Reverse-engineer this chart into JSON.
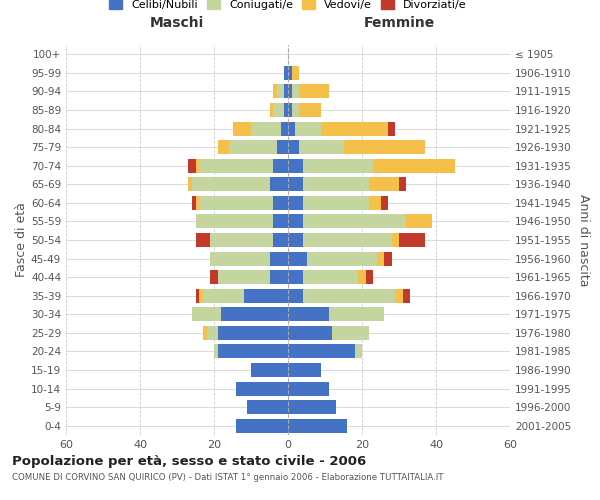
{
  "age_groups": [
    "0-4",
    "5-9",
    "10-14",
    "15-19",
    "20-24",
    "25-29",
    "30-34",
    "35-39",
    "40-44",
    "45-49",
    "50-54",
    "55-59",
    "60-64",
    "65-69",
    "70-74",
    "75-79",
    "80-84",
    "85-89",
    "90-94",
    "95-99",
    "100+"
  ],
  "birth_years": [
    "2001-2005",
    "1996-2000",
    "1991-1995",
    "1986-1990",
    "1981-1985",
    "1976-1980",
    "1971-1975",
    "1966-1970",
    "1961-1965",
    "1956-1960",
    "1951-1955",
    "1946-1950",
    "1941-1945",
    "1936-1940",
    "1931-1935",
    "1926-1930",
    "1921-1925",
    "1916-1920",
    "1911-1915",
    "1906-1910",
    "≤ 1905"
  ],
  "maschi": {
    "celibi": [
      14,
      11,
      14,
      10,
      19,
      19,
      18,
      12,
      5,
      5,
      4,
      4,
      4,
      5,
      4,
      3,
      2,
      1,
      1,
      1,
      0
    ],
    "coniugati": [
      0,
      0,
      0,
      0,
      1,
      3,
      8,
      11,
      14,
      16,
      17,
      21,
      20,
      21,
      20,
      13,
      8,
      3,
      2,
      0,
      0
    ],
    "vedove": [
      0,
      0,
      0,
      0,
      0,
      1,
      0,
      1,
      0,
      0,
      0,
      0,
      1,
      1,
      1,
      3,
      5,
      1,
      1,
      0,
      0
    ],
    "divorziate": [
      0,
      0,
      0,
      0,
      0,
      0,
      0,
      1,
      2,
      0,
      4,
      0,
      1,
      0,
      2,
      0,
      0,
      0,
      0,
      0,
      0
    ]
  },
  "femmine": {
    "celibi": [
      16,
      13,
      11,
      9,
      18,
      12,
      11,
      4,
      4,
      5,
      4,
      4,
      4,
      4,
      4,
      3,
      2,
      1,
      1,
      1,
      0
    ],
    "coniugati": [
      0,
      0,
      0,
      0,
      2,
      10,
      15,
      25,
      15,
      19,
      24,
      28,
      18,
      18,
      19,
      12,
      7,
      2,
      2,
      0,
      0
    ],
    "vedove": [
      0,
      0,
      0,
      0,
      0,
      0,
      0,
      2,
      2,
      2,
      2,
      7,
      3,
      8,
      22,
      22,
      18,
      6,
      8,
      2,
      0
    ],
    "divorziate": [
      0,
      0,
      0,
      0,
      0,
      0,
      0,
      2,
      2,
      2,
      7,
      0,
      2,
      2,
      0,
      0,
      2,
      0,
      0,
      0,
      0
    ]
  },
  "colors": {
    "celibi": "#4472C4",
    "coniugati": "#C5D5A0",
    "vedove": "#F5C04A",
    "divorziate": "#C0392B"
  },
  "xlim": 60,
  "title": "Popolazione per età, sesso e stato civile - 2006",
  "subtitle": "COMUNE DI CORVINO SAN QUIRICO (PV) - Dati ISTAT 1° gennaio 2006 - Elaborazione TUTTAITALIA.IT",
  "ylabel_left": "Fasce di età",
  "ylabel_right": "Anni di nascita",
  "maschi_label": "Maschi",
  "femmine_label": "Femmine",
  "legend_labels": [
    "Celibi/Nubili",
    "Coniugati/e",
    "Vedovi/e",
    "Divorziati/e"
  ]
}
